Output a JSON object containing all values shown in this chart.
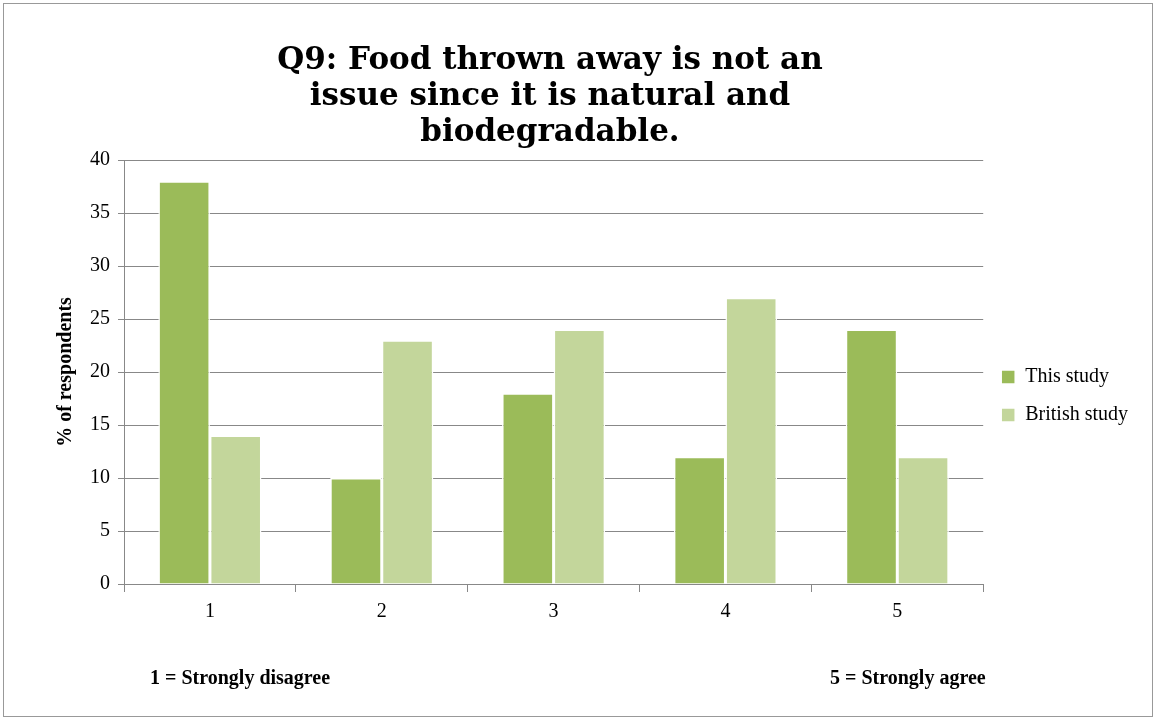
{
  "chart_data": {
    "type": "bar",
    "title": "Q9: Food thrown away is not an issue since it is natural and biodegradable.",
    "ylabel": "% of respondents",
    "categories": [
      "1",
      "2",
      "3",
      "4",
      "5"
    ],
    "series": [
      {
        "name": "This study",
        "color": "#9bbb59",
        "values": [
          38,
          10,
          18,
          12,
          24
        ]
      },
      {
        "name": "British study",
        "color": "#c3d69b",
        "values": [
          14,
          23,
          24,
          27,
          12
        ]
      }
    ],
    "ylim": [
      0,
      40
    ],
    "yticks": [
      0,
      5,
      10,
      15,
      20,
      25,
      30,
      35,
      40
    ],
    "grid": "y",
    "legend": "right",
    "annotations": [
      "1 = Strongly disagree",
      "5 = Strongly agree"
    ]
  }
}
